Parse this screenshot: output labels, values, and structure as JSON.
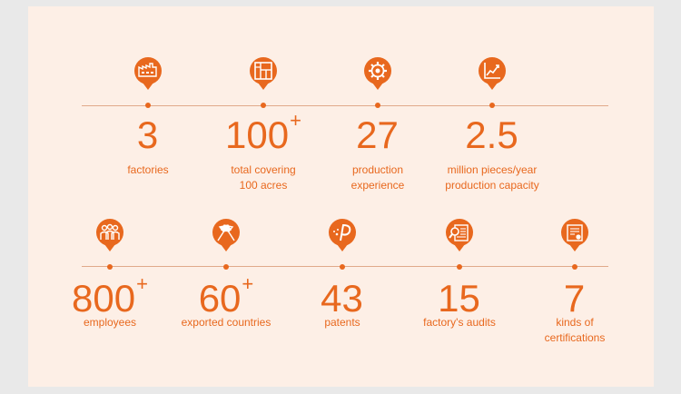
{
  "row1": [
    {
      "value": "3",
      "sup": "",
      "label": "factories",
      "icon": "factory-icon"
    },
    {
      "value": "100",
      "sup": "+",
      "label": "total covering\n100 acres",
      "icon": "floor-plan-icon"
    },
    {
      "value": "27",
      "sup": "",
      "label": "production\nexperience",
      "icon": "gear-icon"
    },
    {
      "value": "2.5",
      "sup": "",
      "label": "million pieces/year\nproduction capacity",
      "icon": "growth-chart-icon"
    }
  ],
  "row2": [
    {
      "value": "800",
      "sup": "+",
      "label": "employees",
      "icon": "people-icon"
    },
    {
      "value": "60",
      "sup": "+",
      "label": "exported countries",
      "icon": "flags-icon"
    },
    {
      "value": "43",
      "sup": "",
      "label": "patents",
      "icon": "patent-icon"
    },
    {
      "value": "15",
      "sup": "",
      "label": "factory's audits",
      "icon": "audit-icon"
    },
    {
      "value": "7",
      "sup": "",
      "label": "kinds of\ncertifications",
      "icon": "certificate-icon"
    }
  ],
  "colors": {
    "accent": "#e8681e",
    "panel": "#fdefe6",
    "background": "#e9e9e9",
    "line": "#e0a98a"
  }
}
